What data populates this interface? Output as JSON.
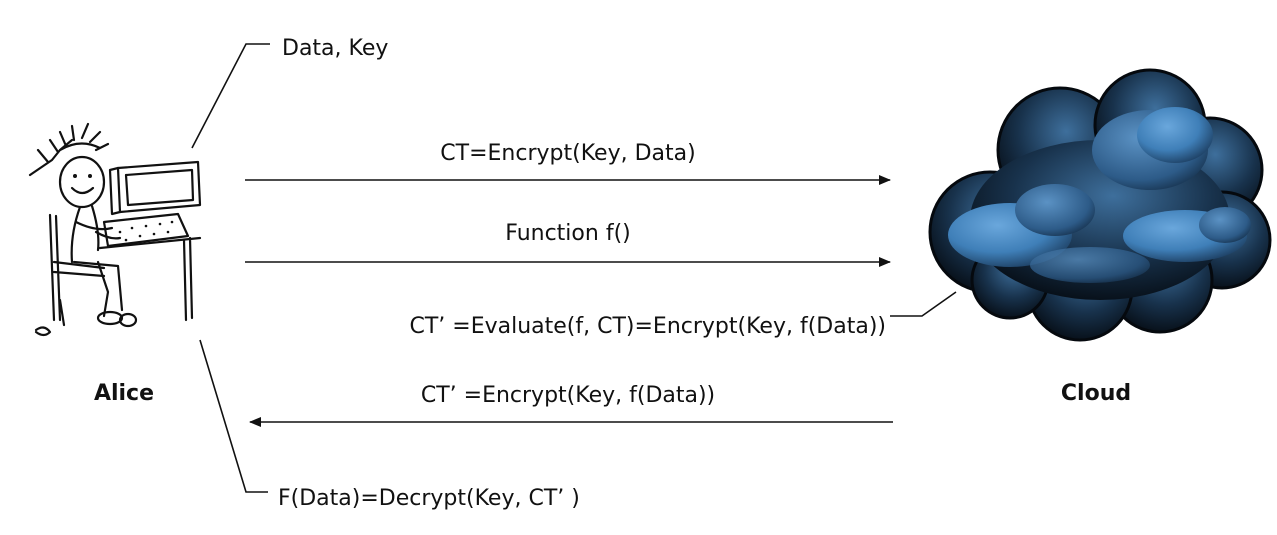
{
  "actors": {
    "left": "Alice",
    "right": "Cloud"
  },
  "notes": {
    "top": "Data, Key",
    "bottom": "F(Data)=Decrypt(Key, CT’ )",
    "evaluate": "CT’ =Evaluate(f, CT)=Encrypt(Key, f(Data))"
  },
  "messages": [
    {
      "label": "CT=Encrypt(Key, Data)",
      "direction": "right"
    },
    {
      "label": "Function f()",
      "direction": "right"
    },
    {
      "label": "CT’ =Encrypt(Key, f(Data))",
      "direction": "left"
    }
  ],
  "icons": {
    "person": "person-at-computer-icon",
    "cloud": "cloud-icon"
  },
  "colors": {
    "cloud_dark": "#0b1622",
    "cloud_light": "#4f8fc8"
  }
}
